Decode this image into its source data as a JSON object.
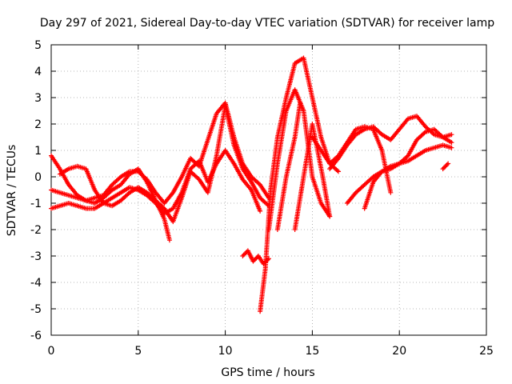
{
  "chart_data": {
    "type": "scatter",
    "title": "Day 297 of 2021, Sidereal Day-to-day VTEC variation (SDTVAR) for receiver lamp",
    "xlabel": "GPS time / hours",
    "ylabel": "SDTVAR / TECUs",
    "xlim": [
      0,
      25
    ],
    "ylim": [
      -6,
      5
    ],
    "x_ticks": [
      0,
      5,
      10,
      15,
      20,
      25
    ],
    "y_ticks": [
      -6,
      -5,
      -4,
      -3,
      -2,
      -1,
      0,
      1,
      2,
      3,
      4,
      5
    ],
    "x_tick_labels": [
      "0",
      "5",
      "10",
      "15",
      "20",
      "25"
    ],
    "y_tick_labels": [
      "-6",
      "-5",
      "-4",
      "-3",
      "-2",
      "-1",
      "0",
      "1",
      "2",
      "3",
      "4",
      "5"
    ],
    "grid": true,
    "legend": "none",
    "marker": "plus",
    "color": "#ff0000",
    "series": [
      {
        "x": [
          0.0,
          0.5,
          1.0,
          1.5,
          2.0,
          2.5,
          3.0,
          3.5,
          4.0,
          4.5,
          5.0,
          5.5,
          6.0,
          6.5,
          6.8
        ],
        "y": [
          0.8,
          0.3,
          -0.3,
          -0.7,
          -0.9,
          -1.0,
          -0.8,
          -0.5,
          -0.3,
          0.1,
          0.3,
          -0.2,
          -0.9,
          -1.6,
          -2.4
        ]
      },
      {
        "x": [
          0.0,
          0.5,
          1.0,
          1.5,
          2.0,
          2.5,
          3.0,
          3.5,
          4.0,
          4.5,
          5.0,
          5.5,
          6.0,
          6.5,
          7.0,
          7.5,
          8.0,
          8.5,
          9.0,
          9.5,
          10.0,
          10.5,
          11.0,
          11.5,
          12.0,
          12.5
        ],
        "y": [
          -0.5,
          -0.6,
          -0.7,
          -0.8,
          -0.9,
          -0.8,
          -0.7,
          -0.3,
          0.0,
          0.2,
          0.2,
          -0.1,
          -0.6,
          -1.0,
          -0.6,
          0.0,
          0.7,
          0.4,
          1.4,
          2.4,
          2.8,
          1.5,
          0.5,
          0.0,
          -0.3,
          -0.8
        ]
      },
      {
        "x": [
          0.0,
          0.5,
          1.0,
          1.5,
          2.0,
          2.5,
          3.0,
          3.5,
          4.0,
          4.5,
          5.0,
          5.5,
          6.0,
          6.5,
          7.0,
          7.5,
          8.0,
          8.5,
          9.0,
          9.5,
          10.0,
          10.5,
          11.0,
          11.5,
          12.0
        ],
        "y": [
          -1.2,
          -1.1,
          -1.0,
          -1.1,
          -1.2,
          -1.2,
          -1.0,
          -0.8,
          -0.6,
          -0.4,
          -0.5,
          -0.7,
          -1.0,
          -1.4,
          -1.2,
          -0.6,
          0.3,
          0.6,
          -0.2,
          0.5,
          1.0,
          0.5,
          -0.1,
          -0.5,
          -1.3
        ]
      },
      {
        "x": [
          0.5,
          1.0,
          1.5,
          2.0,
          2.5,
          3.0,
          3.5,
          4.0,
          4.5,
          5.0,
          5.5,
          6.0,
          6.5,
          7.0,
          7.5,
          8.0,
          8.5,
          9.0,
          9.5,
          10.0,
          10.5,
          11.0,
          11.5,
          12.0,
          12.5
        ],
        "y": [
          0.1,
          0.3,
          0.4,
          0.3,
          -0.5,
          -1.0,
          -1.1,
          -0.9,
          -0.6,
          -0.4,
          -0.6,
          -0.9,
          -1.2,
          -1.7,
          -0.8,
          0.2,
          -0.1,
          -0.6,
          0.8,
          2.7,
          1.2,
          0.3,
          -0.2,
          -0.8,
          -1.1
        ]
      },
      {
        "x": [
          11.0,
          11.3,
          11.6,
          11.9,
          12.2,
          12.5
        ],
        "y": [
          -3.0,
          -2.8,
          -3.2,
          -3.0,
          -3.3,
          -3.1
        ]
      },
      {
        "x": [
          12.0,
          12.3,
          12.6,
          13.0,
          13.5,
          14.0,
          14.5,
          15.0,
          15.5,
          16.0,
          16.5
        ],
        "y": [
          -5.1,
          -3.5,
          -0.5,
          1.5,
          3.0,
          4.3,
          4.5,
          3.0,
          1.5,
          0.5,
          0.2
        ]
      },
      {
        "x": [
          12.5,
          13.0,
          13.5,
          14.0,
          14.5,
          15.0,
          15.5,
          16.0
        ],
        "y": [
          -2.0,
          0.5,
          2.5,
          3.3,
          2.5,
          0.0,
          -1.0,
          -1.5
        ]
      },
      {
        "x": [
          13.0,
          13.5,
          14.0,
          14.3
        ],
        "y": [
          -2.0,
          0.0,
          1.5,
          2.8
        ]
      },
      {
        "x": [
          14.0,
          14.5,
          15.0,
          15.3,
          15.6,
          16.0
        ],
        "y": [
          -2.0,
          0.0,
          2.0,
          1.0,
          0.0,
          -1.5
        ]
      },
      {
        "x": [
          15.0,
          15.5,
          16.0,
          16.5,
          17.0,
          17.5,
          18.0,
          18.5,
          19.0,
          19.5
        ],
        "y": [
          1.5,
          1.0,
          0.5,
          0.8,
          1.3,
          1.8,
          1.9,
          1.8,
          1.0,
          -0.6
        ]
      },
      {
        "x": [
          16.0,
          16.5,
          17.0,
          17.5,
          18.0,
          18.5,
          19.0,
          19.5,
          20.0,
          20.5,
          21.0,
          21.5,
          22.0,
          22.5,
          23.0
        ],
        "y": [
          0.3,
          0.7,
          1.2,
          1.6,
          1.8,
          1.9,
          1.6,
          1.4,
          1.8,
          2.2,
          2.3,
          1.9,
          1.6,
          1.5,
          1.3
        ]
      },
      {
        "x": [
          17.0,
          17.5,
          18.0,
          18.5,
          19.0,
          19.5,
          20.0,
          20.5,
          21.0,
          21.5,
          22.0,
          22.5,
          23.0
        ],
        "y": [
          -1.0,
          -0.6,
          -0.3,
          0.0,
          0.2,
          0.4,
          0.5,
          0.6,
          0.8,
          1.0,
          1.1,
          1.2,
          1.1
        ]
      },
      {
        "x": [
          18.0,
          18.5,
          19.0,
          19.5,
          20.0,
          20.5,
          21.0,
          21.5,
          22.0,
          22.5,
          23.0
        ],
        "y": [
          -1.2,
          -0.2,
          0.2,
          0.3,
          0.5,
          0.8,
          1.4,
          1.7,
          1.8,
          1.5,
          1.6
        ]
      },
      {
        "x": [
          22.5,
          22.8
        ],
        "y": [
          0.3,
          0.5
        ]
      }
    ]
  }
}
